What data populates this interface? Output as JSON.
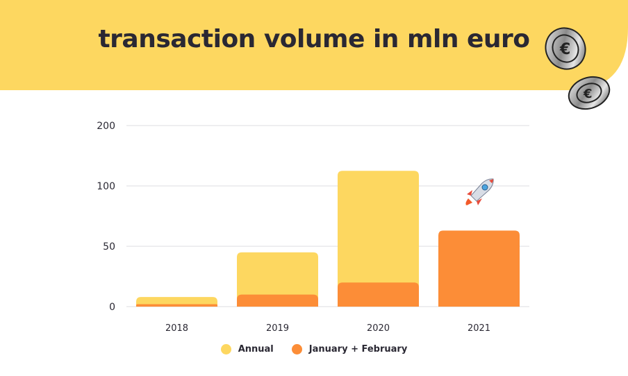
{
  "title": "transaction volume in mln euro",
  "colors": {
    "banner": "#fdd760",
    "annual": "#fdd760",
    "janfeb": "#fc8d37",
    "text": "#2a2833",
    "grid": "#e9e9ec"
  },
  "icons": {
    "decoration": "euro-coins-icon",
    "annotation": "rocket-icon"
  },
  "chart_data": {
    "type": "bar",
    "categories": [
      "2018",
      "2019",
      "2020",
      "2021"
    ],
    "series": [
      {
        "name": "Annual",
        "values": [
          8,
          45,
          125,
          null
        ]
      },
      {
        "name": "January + February",
        "values": [
          2,
          10,
          20,
          63
        ]
      }
    ],
    "stacking": "overlay",
    "y_tick_labels": [
      "0",
      "50",
      "100",
      "200"
    ],
    "xlabel": "",
    "ylabel": "",
    "grid": true,
    "legend_position": "bottom",
    "annotation": {
      "category": "2021",
      "icon": "rocket-icon"
    }
  },
  "legend": [
    {
      "label": "Annual",
      "color": "#fdd760"
    },
    {
      "label": "January + February",
      "color": "#fc8d37"
    }
  ]
}
